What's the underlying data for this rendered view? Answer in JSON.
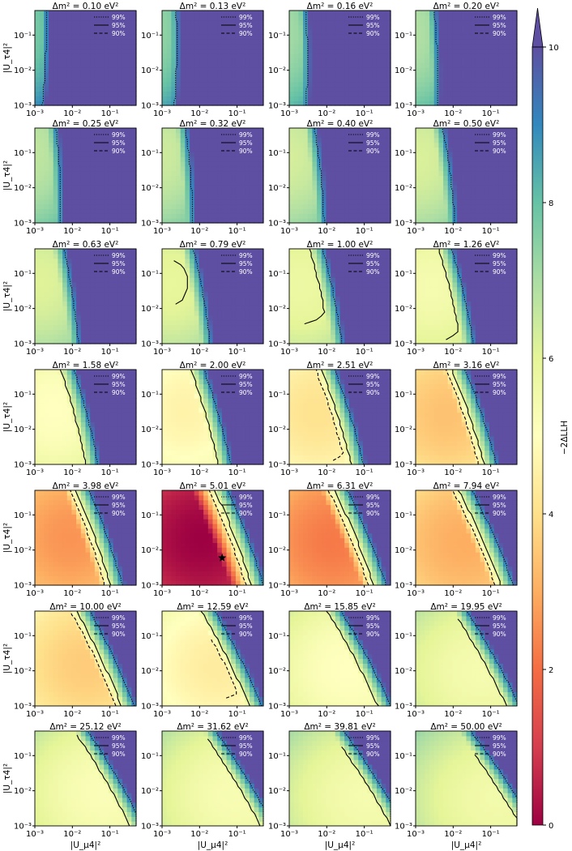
{
  "chart_data": {
    "type": "heatmap",
    "grid": {
      "rows": 7,
      "cols": 4
    },
    "panel_titles": [
      "0.10",
      "0.13",
      "0.16",
      "0.20",
      "0.25",
      "0.32",
      "0.40",
      "0.50",
      "0.63",
      "0.79",
      "1.00",
      "1.26",
      "1.58",
      "2.00",
      "2.51",
      "3.16",
      "3.98",
      "5.01",
      "6.31",
      "7.94",
      "10.00",
      "12.59",
      "15.85",
      "19.95",
      "25.12",
      "31.62",
      "39.81",
      "50.00"
    ],
    "title_prefix": "Δm² = ",
    "title_unit": " eV²",
    "xlabel": "|U_μ4|²",
    "ylabel": "|U_τ4|²",
    "xlim": [
      0.001,
      0.5
    ],
    "ylim": [
      0.001,
      0.5
    ],
    "xticks": [
      0.001,
      0.01,
      0.1
    ],
    "yticks": [
      0.001,
      0.01,
      0.1
    ],
    "tick_labels": [
      "10⁻³",
      "10⁻²",
      "10⁻¹"
    ],
    "legend": [
      {
        "label": "99%",
        "style": "dotted"
      },
      {
        "label": "95%",
        "style": "solid"
      },
      {
        "label": "90%",
        "style": "dashed"
      }
    ],
    "best_fit": {
      "panel": 17,
      "x": 0.04,
      "y": 0.006,
      "marker": "star"
    },
    "colorbar": {
      "label": "−2ΔLLH",
      "min": 0,
      "max": 10,
      "ticks": [
        0,
        2,
        4,
        6,
        8,
        10
      ],
      "extend": "max"
    },
    "panel_best_llh": [
      7.5,
      7.2,
      7.0,
      6.8,
      6.6,
      6.4,
      6.3,
      6.2,
      6.1,
      5.9,
      5.7,
      5.4,
      5.0,
      4.6,
      4.1,
      3.4,
      2.6,
      0.0,
      2.2,
      3.0,
      3.6,
      4.4,
      5.0,
      5.4,
      5.2,
      5.3,
      5.4,
      5.5
    ]
  }
}
